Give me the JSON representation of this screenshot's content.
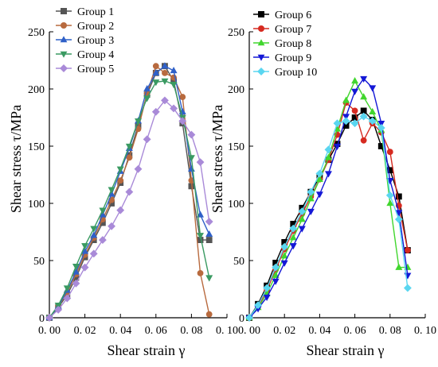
{
  "chart_data": [
    {
      "type": "line",
      "xlabel": "Shear strain γ",
      "ylabel": "Shear stress τ/MPa",
      "xlim": [
        0.0,
        0.1
      ],
      "ylim": [
        0,
        250
      ],
      "xticks": [
        0.0,
        0.02,
        0.04,
        0.06,
        0.08,
        0.1
      ],
      "xtick_labels": [
        "0. 00",
        "0. 02",
        "0. 04",
        "0. 06",
        "0. 08",
        "0. 10"
      ],
      "yticks": [
        0,
        50,
        100,
        150,
        200,
        250
      ],
      "ytick_labels": [
        "0",
        "50",
        "100",
        "150",
        "200",
        "250"
      ],
      "grid": false,
      "legend_position": "top-left",
      "series": [
        {
          "name": "Group 1",
          "color": "#555555",
          "marker": "square",
          "x": [
            0,
            0.005,
            0.01,
            0.015,
            0.02,
            0.025,
            0.03,
            0.035,
            0.04,
            0.045,
            0.05,
            0.055,
            0.06,
            0.065,
            0.07,
            0.075,
            0.08,
            0.085,
            0.09
          ],
          "y": [
            0,
            9,
            20,
            35,
            53,
            68,
            83,
            100,
            118,
            142,
            168,
            195,
            214,
            220,
            207,
            170,
            115,
            68,
            68
          ]
        },
        {
          "name": "Group 2",
          "color": "#b86a3e",
          "marker": "circle",
          "x": [
            0,
            0.005,
            0.01,
            0.015,
            0.02,
            0.025,
            0.03,
            0.035,
            0.04,
            0.045,
            0.05,
            0.055,
            0.06,
            0.065,
            0.07,
            0.075,
            0.08,
            0.085,
            0.09
          ],
          "y": [
            0,
            10,
            22,
            38,
            55,
            70,
            86,
            103,
            120,
            140,
            165,
            196,
            220,
            214,
            210,
            193,
            120,
            39,
            3
          ]
        },
        {
          "name": "Group 3",
          "color": "#2f60c8",
          "marker": "triangle-up",
          "x": [
            0,
            0.005,
            0.01,
            0.015,
            0.02,
            0.025,
            0.03,
            0.035,
            0.04,
            0.045,
            0.05,
            0.055,
            0.06,
            0.065,
            0.07,
            0.075,
            0.08,
            0.085,
            0.09
          ],
          "y": [
            0,
            10,
            24,
            40,
            58,
            72,
            90,
            108,
            128,
            148,
            172,
            200,
            214,
            220,
            216,
            180,
            130,
            90,
            73
          ]
        },
        {
          "name": "Group 4",
          "color": "#3a9a62",
          "marker": "triangle-down",
          "x": [
            0,
            0.005,
            0.01,
            0.015,
            0.02,
            0.025,
            0.03,
            0.035,
            0.04,
            0.045,
            0.05,
            0.055,
            0.06,
            0.065,
            0.07,
            0.075,
            0.08,
            0.085,
            0.09
          ],
          "y": [
            0,
            11,
            26,
            45,
            63,
            78,
            94,
            112,
            130,
            150,
            172,
            192,
            206,
            207,
            204,
            175,
            140,
            72,
            35
          ]
        },
        {
          "name": "Group 5",
          "color": "#a98ad8",
          "marker": "diamond",
          "x": [
            0,
            0.005,
            0.01,
            0.015,
            0.02,
            0.025,
            0.03,
            0.035,
            0.04,
            0.045,
            0.05,
            0.055,
            0.06,
            0.065,
            0.07,
            0.075,
            0.08,
            0.085,
            0.09
          ],
          "y": [
            0,
            7,
            17,
            30,
            44,
            56,
            68,
            80,
            94,
            110,
            130,
            156,
            180,
            190,
            183,
            172,
            160,
            136,
            84
          ]
        }
      ]
    },
    {
      "type": "line",
      "xlabel": "Shear strain γ",
      "ylabel": "Shear stress τ/MPa",
      "xlim": [
        0.0,
        0.1
      ],
      "ylim": [
        0,
        250
      ],
      "xticks": [
        0.0,
        0.02,
        0.04,
        0.06,
        0.08,
        0.1
      ],
      "xtick_labels": [
        "0. 00",
        "0. 02",
        "0. 04",
        "0. 06",
        "0. 08",
        "0. 10"
      ],
      "yticks": [
        0,
        50,
        100,
        150,
        200,
        250
      ],
      "ytick_labels": [
        "0",
        "50",
        "100",
        "150",
        "200",
        "250"
      ],
      "grid": false,
      "legend_position": "top-left",
      "series": [
        {
          "name": "Group 6",
          "color": "#000000",
          "marker": "square",
          "x": [
            0,
            0.005,
            0.01,
            0.015,
            0.02,
            0.025,
            0.03,
            0.035,
            0.04,
            0.045,
            0.05,
            0.055,
            0.06,
            0.065,
            0.07,
            0.075,
            0.08,
            0.085,
            0.09
          ],
          "y": [
            0,
            12,
            28,
            48,
            66,
            82,
            96,
            110,
            123,
            138,
            152,
            168,
            175,
            181,
            173,
            150,
            129,
            106,
            59
          ]
        },
        {
          "name": "Group 7",
          "color": "#d62a20",
          "marker": "circle",
          "x": [
            0,
            0.005,
            0.01,
            0.015,
            0.02,
            0.025,
            0.03,
            0.035,
            0.04,
            0.045,
            0.05,
            0.055,
            0.06,
            0.065,
            0.07,
            0.075,
            0.08,
            0.085,
            0.09
          ],
          "y": [
            0,
            10,
            24,
            42,
            60,
            76,
            91,
            106,
            121,
            138,
            160,
            188,
            181,
            155,
            170,
            162,
            145,
            98,
            59
          ]
        },
        {
          "name": "Group 8",
          "color": "#41d62e",
          "marker": "triangle-up",
          "x": [
            0,
            0.005,
            0.01,
            0.015,
            0.02,
            0.025,
            0.03,
            0.035,
            0.04,
            0.045,
            0.05,
            0.055,
            0.06,
            0.065,
            0.07,
            0.075,
            0.08,
            0.085,
            0.09
          ],
          "y": [
            0,
            9,
            21,
            37,
            54,
            70,
            86,
            104,
            121,
            140,
            165,
            190,
            207,
            193,
            180,
            164,
            100,
            44,
            44
          ]
        },
        {
          "name": "Group 9",
          "color": "#1418d6",
          "marker": "triangle-down",
          "x": [
            0,
            0.005,
            0.01,
            0.015,
            0.02,
            0.025,
            0.03,
            0.035,
            0.04,
            0.045,
            0.05,
            0.055,
            0.06,
            0.065,
            0.07,
            0.075,
            0.08,
            0.085,
            0.09
          ],
          "y": [
            0,
            8,
            18,
            32,
            48,
            63,
            78,
            93,
            108,
            126,
            150,
            176,
            198,
            209,
            201,
            170,
            120,
            92,
            37
          ]
        },
        {
          "name": "Group 10",
          "color": "#5ad6f0",
          "marker": "diamond",
          "x": [
            0,
            0.005,
            0.01,
            0.015,
            0.02,
            0.025,
            0.03,
            0.035,
            0.04,
            0.045,
            0.05,
            0.055,
            0.06,
            0.065,
            0.07,
            0.075,
            0.08,
            0.085,
            0.09
          ],
          "y": [
            0,
            11,
            26,
            44,
            62,
            78,
            93,
            110,
            126,
            147,
            170,
            172,
            170,
            176,
            172,
            166,
            107,
            86,
            26
          ]
        }
      ]
    }
  ]
}
